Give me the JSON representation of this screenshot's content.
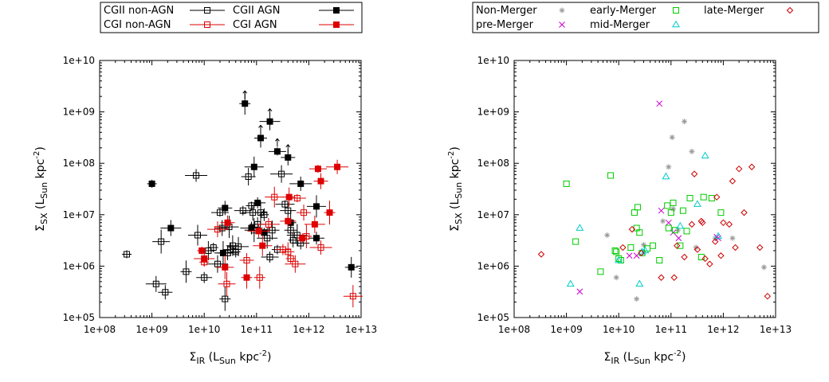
{
  "chart_data": [
    {
      "type": "scatter",
      "panel": "left",
      "xlabel": {
        "sym": "Σ",
        "sub": "IR",
        "unit": "(L",
        "unit_sub": "Sun",
        "unit_rest": "kpc",
        "exp": "-2",
        "close": ")"
      },
      "ylabel": {
        "sym": "Σ",
        "sub": "SX",
        "unit": "(L",
        "unit_sub": "Sun",
        "unit_rest": "kpc",
        "exp": "-2",
        "close": ")"
      },
      "xscale": "log",
      "yscale": "log",
      "xlim": [
        100000000.0,
        10000000000000.0
      ],
      "ylim": [
        100000.0,
        10000000000.0
      ],
      "xticks": [
        {
          "v": 100000000.0,
          "label": "1e+08"
        },
        {
          "v": 1000000000.0,
          "label": "1e+09"
        },
        {
          "v": 10000000000.0,
          "label": "1e+10"
        },
        {
          "v": 100000000000.0,
          "label": "1e+11"
        },
        {
          "v": 1000000000000.0,
          "label": "1e+12"
        },
        {
          "v": 10000000000000.0,
          "label": "1e+13"
        }
      ],
      "yticks": [
        {
          "v": 100000.0,
          "label": "1e+05"
        },
        {
          "v": 1000000.0,
          "label": "1e+06"
        },
        {
          "v": 10000000.0,
          "label": "1e+07"
        },
        {
          "v": 100000000.0,
          "label": "1e+08"
        },
        {
          "v": 1000000000.0,
          "label": "1e+09"
        },
        {
          "v": 10000000000.0,
          "label": "1e+10"
        }
      ],
      "legend_placement": "top-center",
      "series": [
        {
          "name": "CGII non-AGN",
          "color": "#000000",
          "marker": "open-square",
          "points": [
            [
              330000000.0,
              1700000.0
            ],
            [
              1200000000.0,
              450000.0
            ],
            [
              1500000000.0,
              3000000.0
            ],
            [
              1800000000.0,
              310000.0
            ],
            [
              4500000000.0,
              780000.0
            ],
            [
              7000000000.0,
              58000000.0
            ],
            [
              7500000000.0,
              4000000.0
            ],
            [
              10000000000.0,
              600000.0
            ],
            [
              12000000000.0,
              2000000.0
            ],
            [
              15000000000.0,
              2300000.0
            ],
            [
              18000000000.0,
              1100000.0
            ],
            [
              20000000000.0,
              11000000.0
            ],
            [
              22000000000.0,
              5500000.0
            ],
            [
              25000000000.0,
              230000.0
            ],
            [
              28000000000.0,
              1800000.0
            ],
            [
              30000000000.0,
              5800000.0
            ],
            [
              32000000000.0,
              2100000.0
            ],
            [
              35000000000.0,
              2500000.0
            ],
            [
              40000000000.0,
              1900000.0
            ],
            [
              45000000000.0,
              2400000.0
            ],
            [
              55000000000.0,
              12000000.0
            ],
            [
              70000000000.0,
              55000000.0
            ],
            [
              80000000000.0,
              15000000.0
            ],
            [
              85000000000.0,
              11000000.0
            ],
            [
              90000000000.0,
              5000000.0
            ],
            [
              105000000000.0,
              6500000.0
            ],
            [
              120000000000.0,
              11000000.0
            ],
            [
              140000000000.0,
              10000000.0
            ],
            [
              160000000000.0,
              3500000.0
            ],
            [
              180000000000.0,
              1500000.0
            ],
            [
              200000000000.0,
              5000000.0
            ],
            [
              250000000000.0,
              2100000.0
            ],
            [
              300000000000.0,
              62000000.0
            ],
            [
              350000000000.0,
              16000000.0
            ],
            [
              400000000000.0,
              12000000.0
            ],
            [
              450000000000.0,
              5000000.0
            ],
            [
              500000000000.0,
              3200000.0
            ],
            [
              600000000000.0,
              4000000.0
            ],
            [
              700000000000.0,
              2800000.0
            ]
          ]
        },
        {
          "name": "CGII AGN",
          "color": "#000000",
          "marker": "filled-square",
          "points": [
            [
              1000000000.0,
              40000000.0
            ],
            [
              2300000000.0,
              5500000.0
            ],
            [
              23000000000.0,
              1800000.0
            ],
            [
              25000000000.0,
              13500000.0
            ],
            [
              60000000000.0,
              1450000000.0
            ],
            [
              80000000000.0,
              5500000.0
            ],
            [
              90000000000.0,
              85000000.0
            ],
            [
              105000000000.0,
              17000000.0
            ],
            [
              120000000000.0,
              310000000.0
            ],
            [
              140000000000.0,
              4500000.0
            ],
            [
              180000000000.0,
              650000000.0
            ],
            [
              250000000000.0,
              170000000.0
            ],
            [
              400000000000.0,
              130000000.0
            ],
            [
              450000000000.0,
              7000000.0
            ],
            [
              700000000000.0,
              40000000.0
            ],
            [
              1400000000000.0,
              14500000.0
            ],
            [
              1400000000000.0,
              3500000.0
            ],
            [
              6500000000000.0,
              950000.0
            ]
          ]
        },
        {
          "name": "CGI non-AGN",
          "color": "#dd0000",
          "marker": "open-square",
          "points": [
            [
              10000000000.0,
              1200000.0
            ],
            [
              18000000000.0,
              5200000.0
            ],
            [
              27000000000.0,
              450000.0
            ],
            [
              65000000000.0,
              1300000.0
            ],
            [
              115000000000.0,
              600000.0
            ],
            [
              170000000000.0,
              6500000.0
            ],
            [
              220000000000.0,
              22000000.0
            ],
            [
              320000000000.0,
              2100000.0
            ],
            [
              400000000000.0,
              1900000.0
            ],
            [
              450000000000.0,
              1400000.0
            ],
            [
              550000000000.0,
              1100000.0
            ],
            [
              600000000000.0,
              21000000.0
            ],
            [
              800000000000.0,
              11000000.0
            ],
            [
              900000000000.0,
              3800000.0
            ],
            [
              1700000000000.0,
              2300000.0
            ],
            [
              7000000000000.0,
              260000.0
            ]
          ]
        },
        {
          "name": "CGI AGN",
          "color": "#dd0000",
          "marker": "filled-square",
          "points": [
            [
              9000000000.0,
              2000000.0
            ],
            [
              10000000000.0,
              1400000.0
            ],
            [
              25000000000.0,
              950000.0
            ],
            [
              28000000000.0,
              7000000.0
            ],
            [
              65000000000.0,
              600000.0
            ],
            [
              110000000000.0,
              4800000.0
            ],
            [
              130000000000.0,
              2500000.0
            ],
            [
              400000000000.0,
              7500000.0
            ],
            [
              420000000000.0,
              22000000.0
            ],
            [
              750000000000.0,
              3500000.0
            ],
            [
              1300000000000.0,
              6500000.0
            ],
            [
              1500000000000.0,
              78000000.0
            ],
            [
              1700000000000.0,
              45000000.0
            ],
            [
              2500000000000.0,
              11000000.0
            ],
            [
              3500000000000.0,
              85000000.0
            ]
          ]
        }
      ]
    },
    {
      "type": "scatter",
      "panel": "right",
      "xlabel": {
        "sym": "Σ",
        "sub": "IR",
        "unit": "(L",
        "unit_sub": "Sun",
        "unit_rest": "kpc",
        "exp": "-2",
        "close": ")"
      },
      "ylabel": {
        "sym": "Σ",
        "sub": "SX",
        "unit": "(L",
        "unit_sub": "Sun",
        "unit_rest": "kpc",
        "exp": "-2",
        "close": ")"
      },
      "xscale": "log",
      "yscale": "log",
      "xlim": [
        100000000.0,
        10000000000000.0
      ],
      "ylim": [
        100000.0,
        10000000000.0
      ],
      "xticks": [
        {
          "v": 100000000.0,
          "label": "1e+08"
        },
        {
          "v": 1000000000.0,
          "label": "1e+09"
        },
        {
          "v": 10000000000.0,
          "label": "1e+10"
        },
        {
          "v": 100000000000.0,
          "label": "1e+11"
        },
        {
          "v": 1000000000000.0,
          "label": "1e+12"
        },
        {
          "v": 10000000000000.0,
          "label": "1e+13"
        }
      ],
      "yticks": [
        {
          "v": 100000.0,
          "label": "1e+05"
        },
        {
          "v": 1000000.0,
          "label": "1e+06"
        },
        {
          "v": 10000000.0,
          "label": "1e+07"
        },
        {
          "v": 100000000.0,
          "label": "1e+08"
        },
        {
          "v": 1000000000.0,
          "label": "1e+09"
        },
        {
          "v": 10000000000.0,
          "label": "1e+10"
        }
      ],
      "legend_placement": "top-center",
      "series": [
        {
          "name": "Non-Merger",
          "color": "#999999",
          "marker": "star",
          "points": [
            [
              6000000000.0,
              4000000.0
            ],
            [
              9000000000.0,
              600000.0
            ],
            [
              22000000000.0,
              230000.0
            ],
            [
              30000000000.0,
              2600000.0
            ],
            [
              70000000000.0,
              7500000.0
            ],
            [
              90000000000.0,
              85000000.0
            ],
            [
              105000000000.0,
              320000000.0
            ],
            [
              110000000000.0,
              13000000.0
            ],
            [
              135000000000.0,
              5000000.0
            ],
            [
              180000000000.0,
              650000000.0
            ],
            [
              250000000000.0,
              170000000.0
            ],
            [
              300000000000.0,
              2300000.0
            ],
            [
              700000000000.0,
              3500000.0
            ],
            [
              1500000000000.0,
              3500000.0
            ],
            [
              6000000000000.0,
              950000.0
            ]
          ]
        },
        {
          "name": "pre-Merger",
          "color": "#cc00cc",
          "marker": "cross",
          "points": [
            [
              1800000000.0,
              320000.0
            ],
            [
              16000000000.0,
              1600000.0
            ],
            [
              22000000000.0,
              1600000.0
            ],
            [
              60000000000.0,
              1450000000.0
            ],
            [
              65000000000.0,
              12000000.0
            ],
            [
              90000000000.0,
              7000000.0
            ],
            [
              110000000000.0,
              4500000.0
            ],
            [
              140000000000.0,
              3500000.0
            ],
            [
              750000000000.0,
              3700000.0
            ],
            [
              800000000000.0,
              3500000.0
            ]
          ]
        },
        {
          "name": "early-Merger",
          "color": "#00cc00",
          "marker": "open-square",
          "points": [
            [
              1000000000.0,
              40000000.0
            ],
            [
              1500000000.0,
              3000000.0
            ],
            [
              4500000000.0,
              780000.0
            ],
            [
              7000000000.0,
              58000000.0
            ],
            [
              8500000000.0,
              2000000.0
            ],
            [
              9000000000.0,
              1900000.0
            ],
            [
              10000000000.0,
              1400000.0
            ],
            [
              11000000000.0,
              1300000.0
            ],
            [
              17000000000.0,
              2300000.0
            ],
            [
              20000000000.0,
              11000000.0
            ],
            [
              22000000000.0,
              5500000.0
            ],
            [
              23000000000.0,
              14000000.0
            ],
            [
              25000000000.0,
              4500000.0
            ],
            [
              28000000000.0,
              1800000.0
            ],
            [
              35000000000.0,
              2200000.0
            ],
            [
              45000000000.0,
              2500000.0
            ],
            [
              60000000000.0,
              1300000.0
            ],
            [
              85000000000.0,
              15000000.0
            ],
            [
              90000000000.0,
              5500000.0
            ],
            [
              100000000000.0,
              11000000.0
            ],
            [
              110000000000.0,
              17000000.0
            ],
            [
              120000000000.0,
              5000000.0
            ],
            [
              150000000000.0,
              2500000.0
            ],
            [
              170000000000.0,
              12000000.0
            ],
            [
              200000000000.0,
              4800000.0
            ],
            [
              230000000000.0,
              21000000.0
            ],
            [
              380000000000.0,
              1500000.0
            ],
            [
              420000000000.0,
              22000000.0
            ],
            [
              600000000000.0,
              21000000.0
            ],
            [
              900000000000.0,
              11000000.0
            ]
          ]
        },
        {
          "name": "mid-Merger",
          "color": "#00cccc",
          "marker": "triangle",
          "points": [
            [
              1200000000.0,
              450000.0
            ],
            [
              1800000000.0,
              5500000.0
            ],
            [
              10000000000.0,
              1300000.0
            ],
            [
              25000000000.0,
              450000.0
            ],
            [
              28000000000.0,
              1900000.0
            ],
            [
              32000000000.0,
              2000000.0
            ],
            [
              80000000000.0,
              55000000.0
            ],
            [
              150000000000.0,
              6000000.0
            ],
            [
              320000000000.0,
              16000000.0
            ],
            [
              450000000000.0,
              140000000.0
            ],
            [
              800000000000.0,
              3800000.0
            ]
          ]
        },
        {
          "name": "late-Merger",
          "color": "#cc0000",
          "marker": "diamond",
          "points": [
            [
              330000000.0,
              1700000.0
            ],
            [
              12000000000.0,
              2300000.0
            ],
            [
              18000000000.0,
              5200000.0
            ],
            [
              27000000000.0,
              1800000.0
            ],
            [
              65000000000.0,
              600000.0
            ],
            [
              115000000000.0,
              600000.0
            ],
            [
              130000000000.0,
              2500000.0
            ],
            [
              180000000000.0,
              1500000.0
            ],
            [
              250000000000.0,
              6500000.0
            ],
            [
              280000000000.0,
              62000000.0
            ],
            [
              320000000000.0,
              2100000.0
            ],
            [
              380000000000.0,
              7500000.0
            ],
            [
              400000000000.0,
              7000000.0
            ],
            [
              450000000000.0,
              1400000.0
            ],
            [
              550000000000.0,
              1100000.0
            ],
            [
              700000000000.0,
              3000000.0
            ],
            [
              900000000000.0,
              1600000.0
            ],
            [
              1000000000000.0,
              7000000.0
            ],
            [
              1300000000000.0,
              6500000.0
            ],
            [
              1500000000000.0,
              45000000.0
            ],
            [
              1700000000000.0,
              2300000.0
            ],
            [
              2500000000000.0,
              11000000.0
            ],
            [
              3500000000000.0,
              85000000.0
            ],
            [
              5000000000000.0,
              2300000.0
            ],
            [
              7000000000000.0,
              260000.0
            ],
            [
              750000000000.0,
              22000000.0
            ],
            [
              2000000000000.0,
              78000000.0
            ]
          ]
        }
      ]
    }
  ]
}
